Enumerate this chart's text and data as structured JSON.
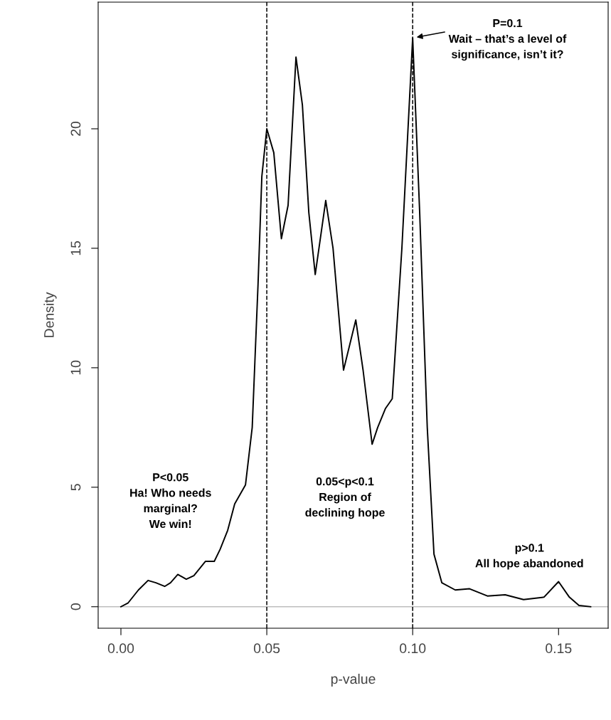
{
  "chart_data": {
    "type": "line",
    "xlabel": "p-value",
    "ylabel": "Density",
    "x": [
      0,
      0.0024,
      0.006,
      0.0093,
      0.012,
      0.015,
      0.017,
      0.0195,
      0.0224,
      0.025,
      0.029,
      0.032,
      0.034,
      0.0366,
      0.039,
      0.0427,
      0.045,
      0.047,
      0.0483,
      0.05,
      0.0524,
      0.055,
      0.0573,
      0.06,
      0.0622,
      0.0644,
      0.0666,
      0.0702,
      0.0727,
      0.0763,
      0.0805,
      0.083,
      0.0861,
      0.088,
      0.0907,
      0.093,
      0.0963,
      0.1,
      0.1024,
      0.105,
      0.1073,
      0.11,
      0.1146,
      0.1195,
      0.1256,
      0.1317,
      0.138,
      0.145,
      0.15,
      0.1537,
      0.157,
      0.161
    ],
    "series": [
      {
        "color": "#000000",
        "values": [
          0,
          0.15,
          0.7,
          1.1,
          1.0,
          0.85,
          1.0,
          1.35,
          1.15,
          1.3,
          1.9,
          1.9,
          2.4,
          3.2,
          4.3,
          5.1,
          7.5,
          13.5,
          18,
          20.0,
          19,
          15.4,
          16.8,
          23.0,
          21,
          16.5,
          13.9,
          17.0,
          15,
          9.9,
          12.0,
          9.9,
          6.8,
          7.5,
          8.3,
          8.7,
          15,
          23.8,
          16.5,
          7.5,
          2.2,
          1.0,
          0.7,
          0.75,
          0.45,
          0.5,
          0.3,
          0.4,
          1.05,
          0.4,
          0.05,
          0
        ]
      }
    ],
    "xlim": [
      -0.0078,
      0.167
    ],
    "ylim": [
      -0.9,
      25.3
    ],
    "xticks": [
      {
        "value": 0,
        "label": "0.00"
      },
      {
        "value": 0.05,
        "label": "0.05"
      },
      {
        "value": 0.1,
        "label": "0.10"
      },
      {
        "value": 0.15,
        "label": "0.15"
      }
    ],
    "yticks": [
      0,
      5,
      10,
      15,
      20
    ],
    "ref_lines": [
      {
        "axis": "y",
        "value": 0,
        "color": "#bebebe",
        "line_style": "solid"
      },
      {
        "axis": "x",
        "value": 0.05,
        "color": "#000000",
        "line_style": "dashed"
      },
      {
        "axis": "x",
        "value": 0.1,
        "color": "#000000",
        "line_style": "dashed"
      }
    ],
    "annotations": [
      {
        "text": "P=0.1\nWait – that’s a level of\nsignificance, isn’t it?",
        "x": 0.1,
        "y": 23.8
      },
      "P<0.05\nHa! Who needs\nmarginal?\nWe win!",
      "0.05<p<0.1\nRegion of\ndeclining hope",
      "p>0.1\nAll hope abandoned"
    ],
    "grid": false,
    "legend": false,
    "marker": "none",
    "line_style": "solid"
  }
}
